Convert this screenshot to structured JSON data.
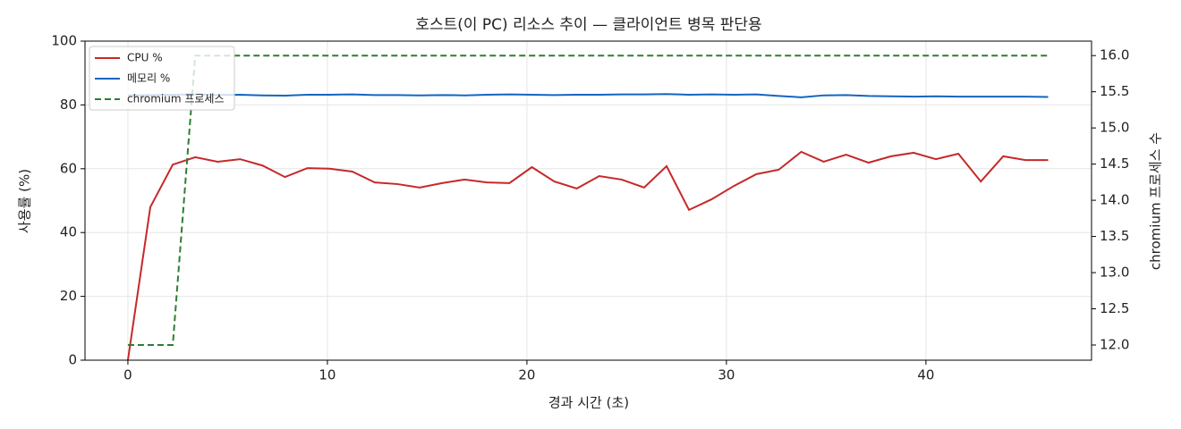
{
  "chart_data": {
    "type": "line",
    "title": "호스트(이 PC) 리소스 추이 — 클라이언트 병목 판단용",
    "xlabel": "경과 시간 (초)",
    "ylabel": "사용률 (%)",
    "y2label": "chromium 프로세스 수",
    "x": [
      0,
      1.125,
      2.25,
      3.375,
      4.5,
      5.625,
      6.75,
      7.875,
      9,
      10.125,
      11.25,
      12.375,
      13.5,
      14.625,
      15.75,
      16.875,
      18,
      19.125,
      20.25,
      21.375,
      22.5,
      23.625,
      24.75,
      25.875,
      27,
      28.125,
      29.25,
      30.375,
      31.5,
      32.625,
      33.75,
      34.875,
      36,
      37.125,
      38.25,
      39.375,
      40.5,
      41.625,
      42.75,
      43.875,
      45,
      46.125
    ],
    "series": [
      {
        "name": "CPU %",
        "color": "#c62828",
        "linestyle": "solid",
        "axis": "y",
        "values": [
          0,
          48,
          61.3,
          63.6,
          62.2,
          63,
          61,
          57.4,
          60.2,
          60,
          59.1,
          55.7,
          55.2,
          54.1,
          55.5,
          56.6,
          55.7,
          55.5,
          60.5,
          56,
          53.8,
          57.7,
          56.6,
          54.1,
          60.8,
          47.1,
          50.4,
          54.6,
          58.3,
          59.7,
          65.3,
          62.2,
          64.4,
          61.9,
          63.9,
          65,
          63,
          64.7,
          56,
          63.9,
          62.7,
          62.7
        ]
      },
      {
        "name": "메모리 %",
        "color": "#1565c0",
        "linestyle": "solid",
        "axis": "y",
        "values": [
          83.0,
          83.1,
          83.2,
          83.3,
          83.1,
          83.2,
          83.0,
          82.9,
          83.2,
          83.2,
          83.3,
          83.1,
          83.1,
          83.0,
          83.1,
          83.0,
          83.2,
          83.3,
          83.2,
          83.1,
          83.2,
          83.2,
          83.3,
          83.3,
          83.4,
          83.2,
          83.3,
          83.2,
          83.3,
          82.8,
          82.4,
          83.0,
          83.1,
          82.8,
          82.7,
          82.6,
          82.7,
          82.6,
          82.6,
          82.6,
          82.6,
          82.5
        ]
      },
      {
        "name": "chromium 프로세스",
        "color": "#2e7d32",
        "linestyle": "dashed",
        "axis": "y2",
        "values": [
          12,
          12,
          12,
          16,
          16,
          16,
          16,
          16,
          16,
          16,
          16,
          16,
          16,
          16,
          16,
          16,
          16,
          16,
          16,
          16,
          16,
          16,
          16,
          16,
          16,
          16,
          16,
          16,
          16,
          16,
          16,
          16,
          16,
          16,
          16,
          16,
          16,
          16,
          16,
          16,
          16,
          16
        ]
      }
    ],
    "xlim": [
      -2.15,
      48.3
    ],
    "xticks": [
      0,
      10,
      20,
      30,
      40
    ],
    "ylim": [
      0,
      100
    ],
    "yticks": [
      0,
      20,
      40,
      60,
      80,
      100
    ],
    "y2lim": [
      11.79,
      16.2
    ],
    "y2ticks": [
      {
        "value": 12,
        "label": "12.0"
      },
      {
        "value": 12.5,
        "label": "12.5"
      },
      {
        "value": 13,
        "label": "13.0"
      },
      {
        "value": 13.5,
        "label": "13.5"
      },
      {
        "value": 14,
        "label": "14.0"
      },
      {
        "value": 14.5,
        "label": "14.5"
      },
      {
        "value": 15,
        "label": "15.0"
      },
      {
        "value": 15.5,
        "label": "15.5"
      },
      {
        "value": 16,
        "label": "16.0"
      }
    ],
    "grid": true,
    "legend": "upper left"
  }
}
